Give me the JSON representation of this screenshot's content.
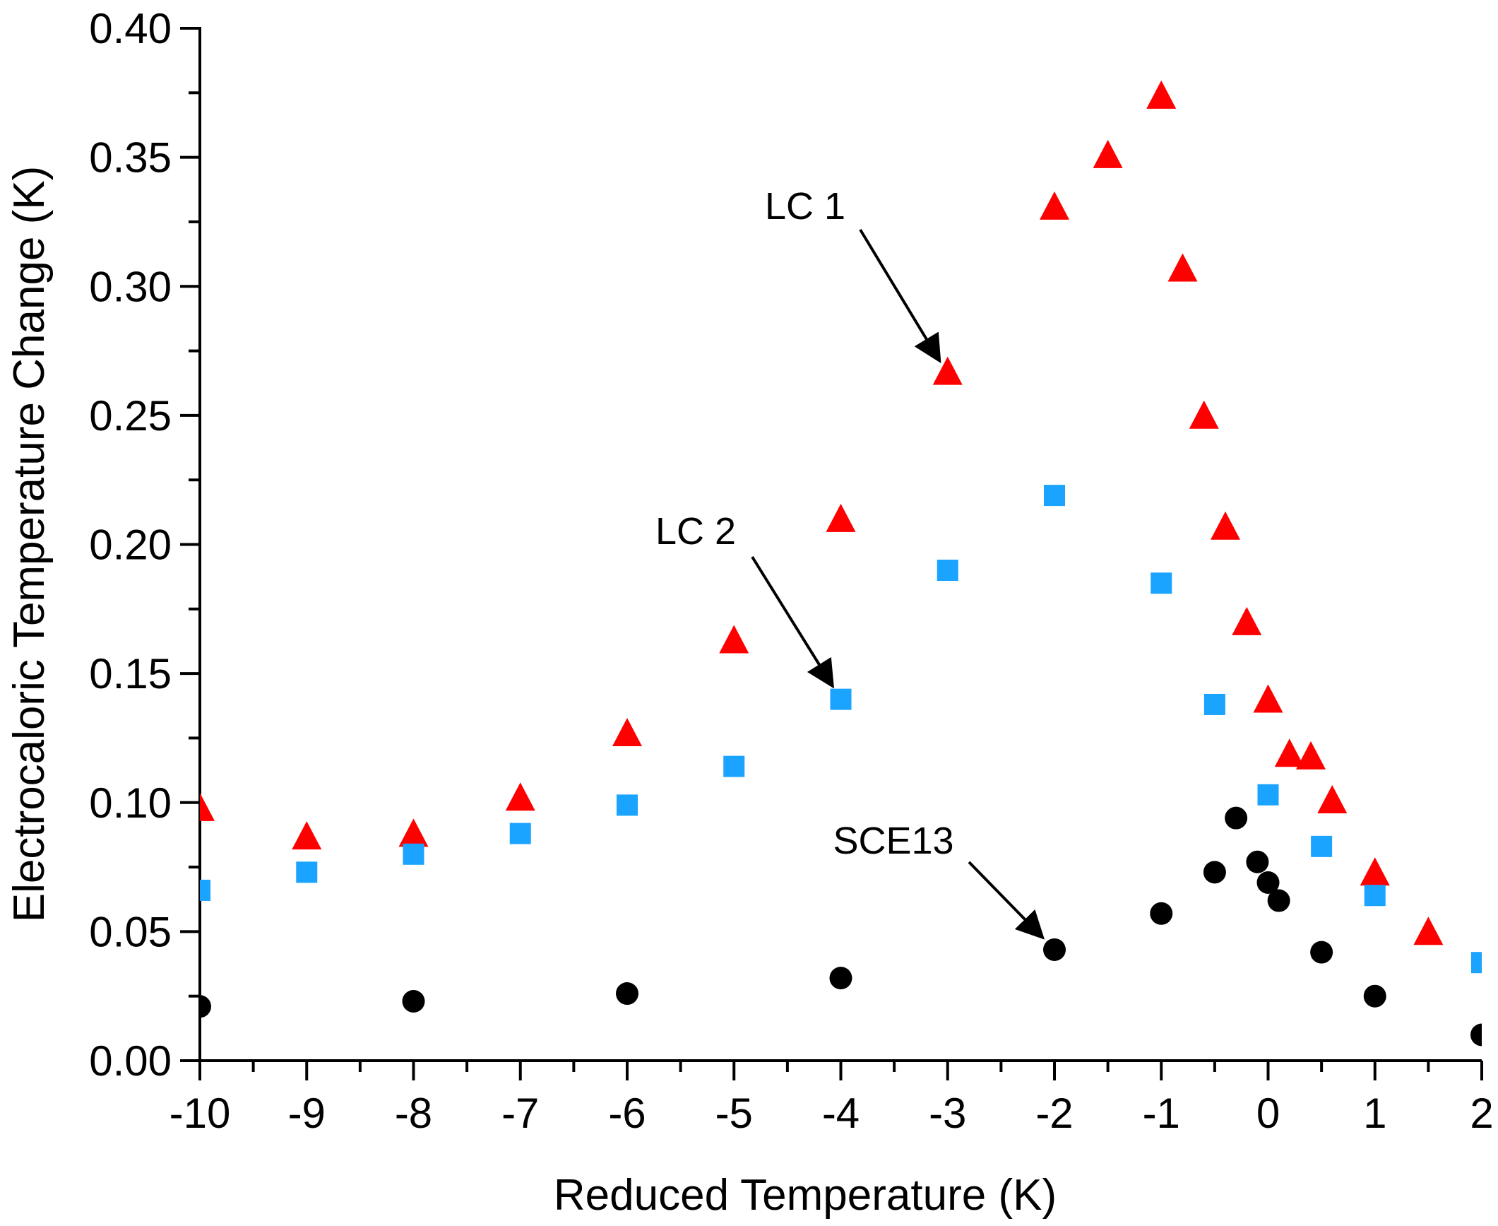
{
  "chart_data": {
    "type": "scatter",
    "title": "",
    "xlabel": "Reduced Temperature (K)",
    "ylabel": "Electrocaloric Temperature Change (K)",
    "xlim": [
      -10,
      2
    ],
    "ylim": [
      0,
      0.4
    ],
    "x_ticks": [
      -10,
      -9,
      -8,
      -7,
      -6,
      -5,
      -4,
      -3,
      -2,
      -1,
      0,
      1,
      2
    ],
    "x_tick_labels": [
      "-10",
      "-9",
      "-8",
      "-7",
      "-6",
      "-5",
      "-4",
      "-3",
      "-2",
      "-1",
      "0",
      "1",
      "2"
    ],
    "y_ticks": [
      0,
      0.05,
      0.1,
      0.15,
      0.2,
      0.25,
      0.3,
      0.35,
      0.4
    ],
    "y_tick_labels": [
      "0.00",
      "0.05",
      "0.10",
      "0.15",
      "0.20",
      "0.25",
      "0.30",
      "0.35",
      "0.40"
    ],
    "grid": false,
    "series": [
      {
        "name": "LC 1",
        "marker": "triangle",
        "color": "#ff0000",
        "points": [
          {
            "x": -10,
            "y": 0.097
          },
          {
            "x": -9,
            "y": 0.086
          },
          {
            "x": -8,
            "y": 0.087
          },
          {
            "x": -7,
            "y": 0.101
          },
          {
            "x": -6,
            "y": 0.126
          },
          {
            "x": -5,
            "y": 0.162
          },
          {
            "x": -4,
            "y": 0.209
          },
          {
            "x": -3,
            "y": 0.266
          },
          {
            "x": -2,
            "y": 0.33
          },
          {
            "x": -1.5,
            "y": 0.35
          },
          {
            "x": -1,
            "y": 0.373
          },
          {
            "x": -0.8,
            "y": 0.306
          },
          {
            "x": -0.6,
            "y": 0.249
          },
          {
            "x": -0.4,
            "y": 0.206
          },
          {
            "x": -0.2,
            "y": 0.169
          },
          {
            "x": 0,
            "y": 0.139
          },
          {
            "x": 0.2,
            "y": 0.118
          },
          {
            "x": 0.4,
            "y": 0.117
          },
          {
            "x": 0.6,
            "y": 0.1
          },
          {
            "x": 1,
            "y": 0.072
          },
          {
            "x": 1.5,
            "y": 0.049
          }
        ]
      },
      {
        "name": "LC 2",
        "marker": "square",
        "color": "#1aa3ff",
        "points": [
          {
            "x": -10,
            "y": 0.066
          },
          {
            "x": -9,
            "y": 0.073
          },
          {
            "x": -8,
            "y": 0.08
          },
          {
            "x": -7,
            "y": 0.088
          },
          {
            "x": -6,
            "y": 0.099
          },
          {
            "x": -5,
            "y": 0.114
          },
          {
            "x": -4,
            "y": 0.14
          },
          {
            "x": -3,
            "y": 0.19
          },
          {
            "x": -2,
            "y": 0.219
          },
          {
            "x": -1,
            "y": 0.185
          },
          {
            "x": -0.5,
            "y": 0.138
          },
          {
            "x": 0,
            "y": 0.103
          },
          {
            "x": 0.5,
            "y": 0.083
          },
          {
            "x": 1,
            "y": 0.064
          },
          {
            "x": 2,
            "y": 0.038
          }
        ]
      },
      {
        "name": "SCE13",
        "marker": "circle",
        "color": "#000000",
        "points": [
          {
            "x": -10,
            "y": 0.021
          },
          {
            "x": -8,
            "y": 0.023
          },
          {
            "x": -6,
            "y": 0.026
          },
          {
            "x": -4,
            "y": 0.032
          },
          {
            "x": -2,
            "y": 0.043
          },
          {
            "x": -1,
            "y": 0.057
          },
          {
            "x": -0.5,
            "y": 0.073
          },
          {
            "x": -0.3,
            "y": 0.094
          },
          {
            "x": -0.1,
            "y": 0.077
          },
          {
            "x": 0,
            "y": 0.069
          },
          {
            "x": 0.1,
            "y": 0.062
          },
          {
            "x": 0.5,
            "y": 0.042
          },
          {
            "x": 1,
            "y": 0.025
          },
          {
            "x": 2,
            "y": 0.01
          }
        ]
      }
    ],
    "annotations": [
      {
        "text": "LC 1",
        "points_to": {
          "x": -3,
          "y": 0.266
        }
      },
      {
        "text": "LC 2",
        "points_to": {
          "x": -4,
          "y": 0.14
        }
      },
      {
        "text": "SCE13",
        "points_to": {
          "x": -2,
          "y": 0.043
        }
      }
    ]
  }
}
